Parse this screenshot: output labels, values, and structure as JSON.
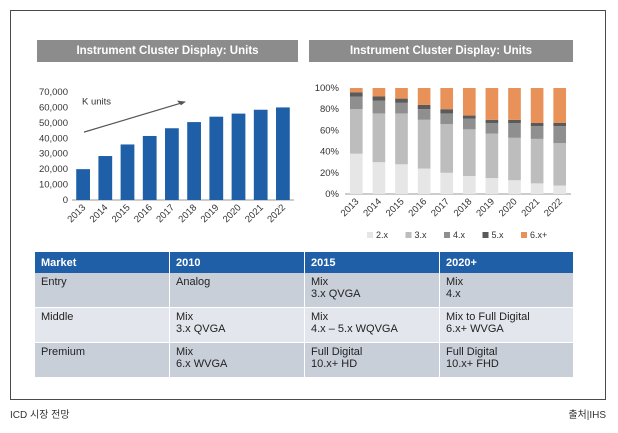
{
  "chart_data": [
    {
      "type": "bar",
      "title": "Instrument Cluster Display: Units",
      "annotation": "K units",
      "categories": [
        "2013",
        "2014",
        "2015",
        "2016",
        "2017",
        "2018",
        "2019",
        "2020",
        "2021",
        "2022"
      ],
      "values": [
        20000,
        28500,
        36000,
        41500,
        46500,
        50500,
        54000,
        56000,
        58500,
        60000
      ],
      "ylim": [
        0,
        70000
      ],
      "yticks": [
        "0",
        "10,000",
        "20,000",
        "30,000",
        "40,000",
        "50,000",
        "60,000",
        "70,000"
      ],
      "color": "#1f5fa8",
      "grid": false
    },
    {
      "type": "bar",
      "stacked": true,
      "title": "Instrument Cluster Display: Units",
      "categories": [
        "2013",
        "2014",
        "2015",
        "2016",
        "2017",
        "2018",
        "2019",
        "2020",
        "2021",
        "2022"
      ],
      "ylim": [
        0,
        100
      ],
      "yticks": [
        "0%",
        "20%",
        "40%",
        "60%",
        "80%",
        "100%"
      ],
      "legend_position": "bottom",
      "series": [
        {
          "name": "2.x",
          "color": "#e6e6e6",
          "values": [
            38,
            30,
            28,
            24,
            20,
            17,
            15,
            13,
            10,
            8
          ]
        },
        {
          "name": "3.x",
          "color": "#bdbdbd",
          "values": [
            42,
            46,
            48,
            46,
            46,
            44,
            42,
            40,
            42,
            40
          ]
        },
        {
          "name": "4.x",
          "color": "#8f8f8f",
          "values": [
            12,
            12,
            10,
            10,
            10,
            10,
            10,
            14,
            12,
            16
          ]
        },
        {
          "name": "5.x",
          "color": "#5a5a5a",
          "values": [
            4,
            4,
            4,
            4,
            4,
            3,
            3,
            3,
            3,
            3
          ]
        },
        {
          "name": "6.x+",
          "color": "#e8925a",
          "values": [
            4,
            8,
            10,
            16,
            20,
            26,
            30,
            30,
            33,
            33
          ]
        }
      ]
    }
  ],
  "table": {
    "headers": [
      "Market",
      "2010",
      "2015",
      "2020+"
    ],
    "rows": [
      {
        "cells": [
          [
            "Entry"
          ],
          [
            "Analog"
          ],
          [
            "Mix",
            "3.x QVGA"
          ],
          [
            "Mix",
            "4.x"
          ]
        ]
      },
      {
        "cells": [
          [
            "Middle"
          ],
          [
            "Mix",
            "3.x QVGA"
          ],
          [
            "Mix",
            "4.x – 5.x WQVGA"
          ],
          [
            "Mix to Full Digital",
            "6.x+ WVGA"
          ]
        ]
      },
      {
        "cells": [
          [
            "Premium"
          ],
          [
            "Mix",
            "6.x WVGA"
          ],
          [
            "Full Digital",
            "10.x+ HD"
          ],
          [
            "Full Digital",
            "10.x+ FHD"
          ]
        ]
      }
    ]
  },
  "caption_left": "ICD 시장 전망",
  "caption_right": "출처|IHS"
}
